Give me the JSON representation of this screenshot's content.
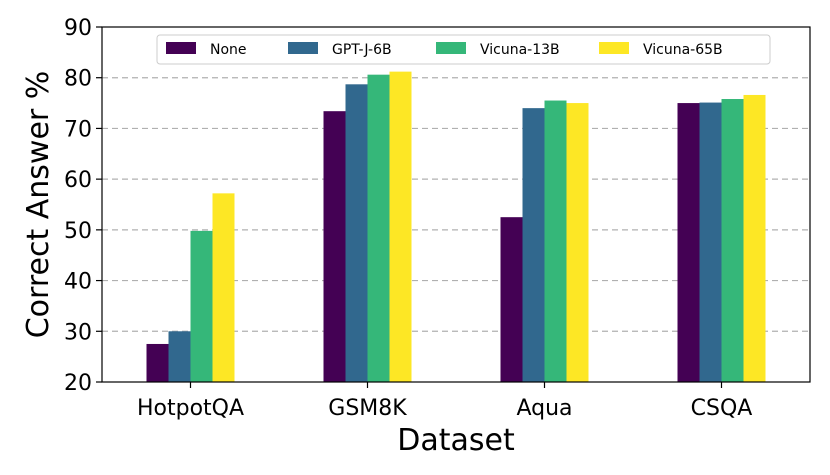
{
  "chart_data": {
    "type": "bar",
    "categories": [
      "HotpotQA",
      "GSM8K",
      "Aqua",
      "CSQA"
    ],
    "series": [
      {
        "name": "None",
        "color": "#440154",
        "values": [
          27.5,
          73.4,
          52.5,
          75.0
        ]
      },
      {
        "name": "GPT-J-6B",
        "color": "#31688e",
        "values": [
          30.0,
          78.7,
          74.0,
          75.1
        ]
      },
      {
        "name": "Vicuna-13B",
        "color": "#35b779",
        "values": [
          49.8,
          80.6,
          75.5,
          75.8
        ]
      },
      {
        "name": "Vicuna-65B",
        "color": "#fde725",
        "values": [
          57.2,
          81.2,
          75.0,
          76.6
        ]
      }
    ],
    "title": "",
    "xlabel": "Dataset",
    "ylabel": "Correct Answer %",
    "ylim": [
      20,
      90
    ],
    "yticks": [
      20,
      30,
      40,
      50,
      60,
      70,
      80,
      90
    ],
    "grid": "y-dashed",
    "legend_position": "top-center"
  }
}
